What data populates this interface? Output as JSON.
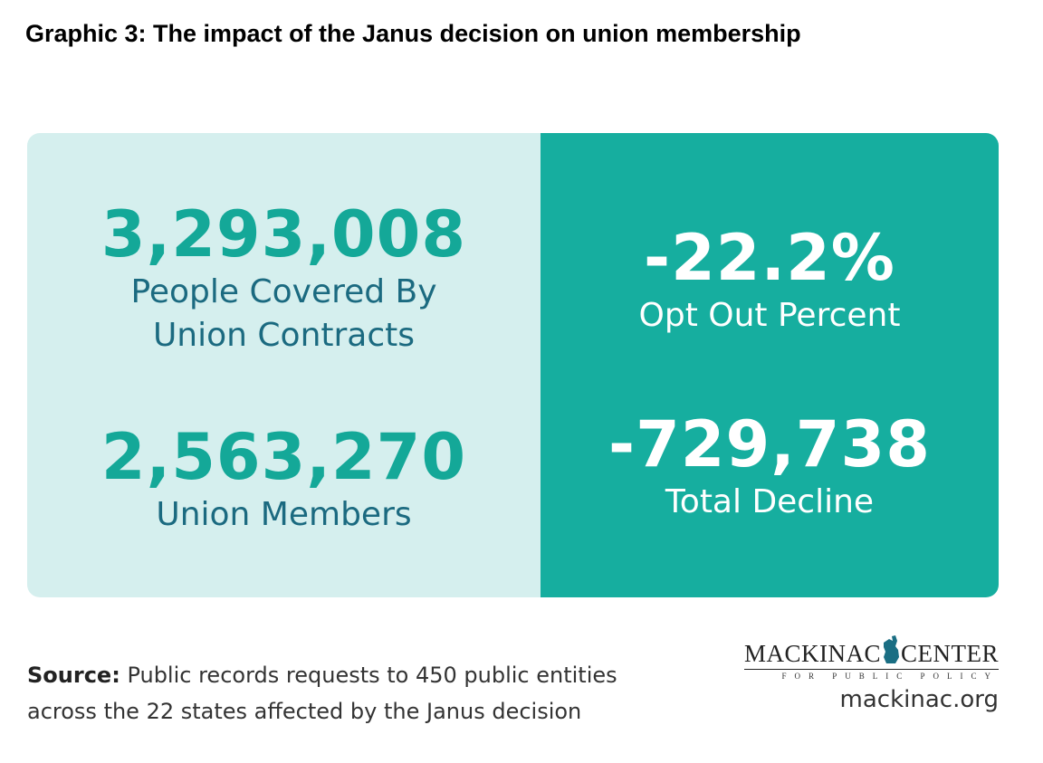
{
  "header": {
    "title": "Graphic 3: The impact of the Janus decision on union membership"
  },
  "left_stats": [
    {
      "value": "3,293,008",
      "label_lines": [
        "People Covered By",
        "Union Contracts"
      ]
    },
    {
      "value": "2,563,270",
      "label_lines": [
        "Union Members"
      ]
    }
  ],
  "right_stats": [
    {
      "value": "-22.2%",
      "label_lines": [
        "Opt Out Percent"
      ]
    },
    {
      "value": "-729,738",
      "label_lines": [
        "Total Decline"
      ]
    }
  ],
  "footer": {
    "source_label": "Source:",
    "source_lines": [
      "Public records requests to 450 public entities",
      "across the 22 states affected by the Janus decision"
    ],
    "logo": {
      "left": "MACKINAC",
      "right": "CENTER",
      "sub": "FOR PUBLIC POLICY"
    },
    "url": "mackinac.org"
  }
}
